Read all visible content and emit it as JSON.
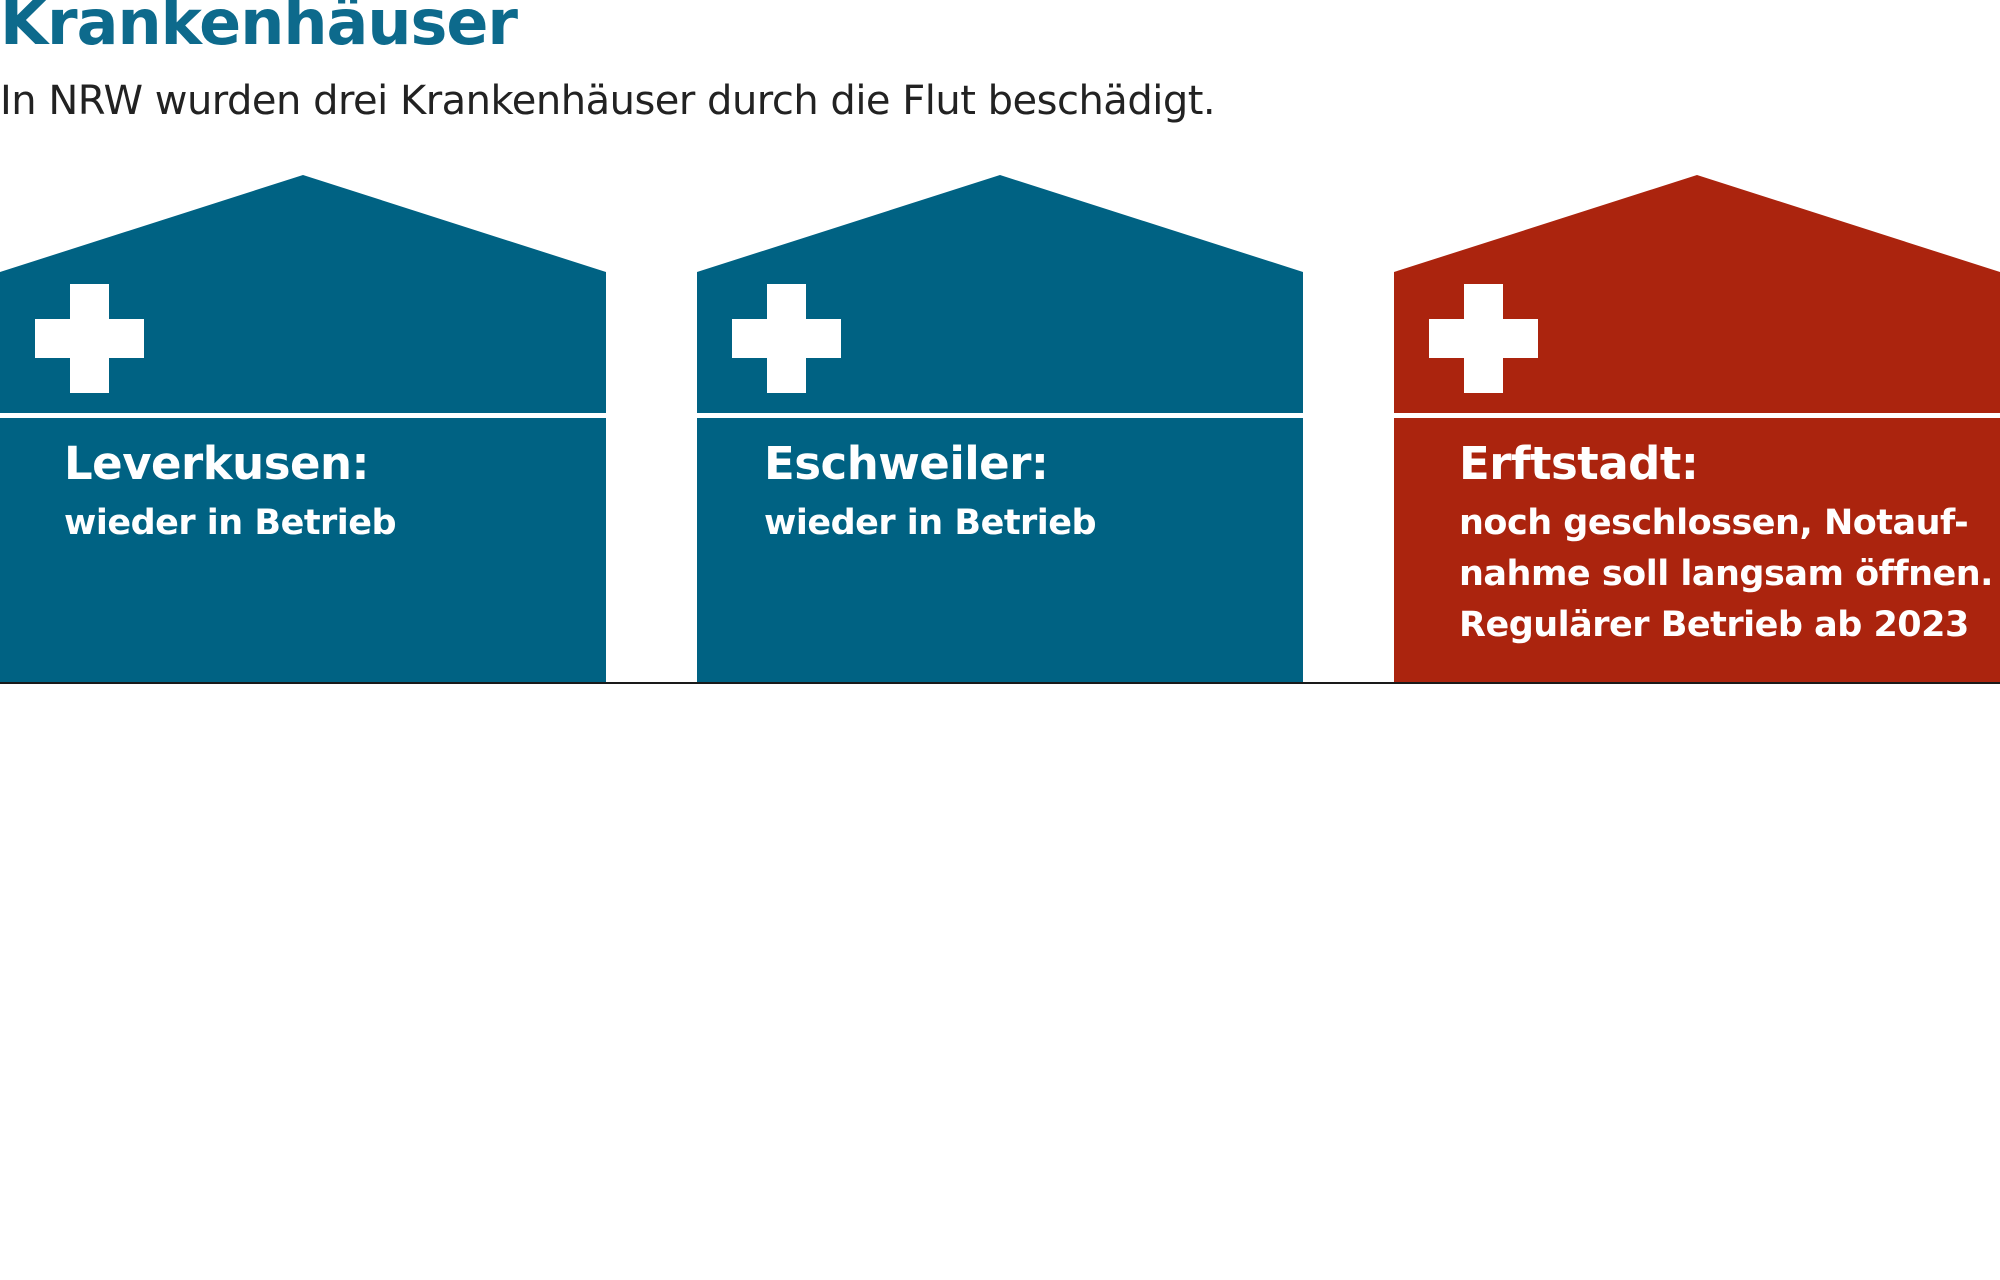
{
  "title": "Krankenhäuser",
  "subtitle": "In NRW wurden drei Krankenhäuser durch die Flut beschädigt.",
  "colors": {
    "title": "#0d6a8c",
    "open": "#006283",
    "closed": "#ab240e",
    "baseline": "#1a1a1a"
  },
  "hospitals": [
    {
      "name": "Leverkusen:",
      "status": "wieder in Betrieb",
      "state": "open",
      "icon": "medical-cross-icon"
    },
    {
      "name": "Eschweiler:",
      "status": "wieder in Betrieb",
      "state": "open",
      "icon": "medical-cross-icon"
    },
    {
      "name": "Erftstadt:",
      "status": "noch geschlossen, Notauf-\nnahme soll langsam öffnen.\nRegulärer Betrieb ab 2023",
      "state": "closed",
      "icon": "medical-cross-icon"
    }
  ]
}
